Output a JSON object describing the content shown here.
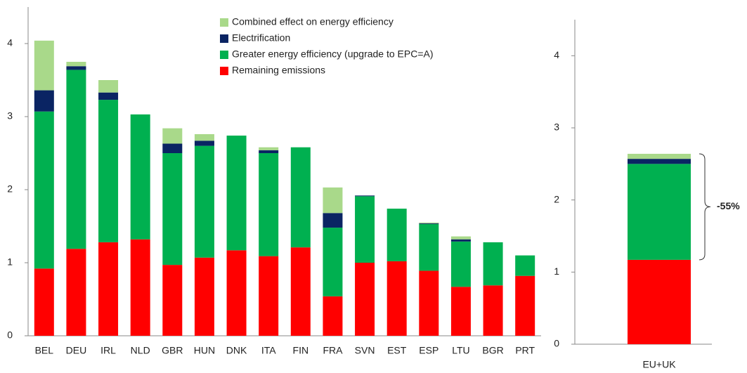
{
  "chart_data": [
    {
      "type": "stacked_bar",
      "categories": [
        "BEL",
        "DEU",
        "IRL",
        "NLD",
        "GBR",
        "HUN",
        "DNK",
        "ITA",
        "FIN",
        "FRA",
        "SVN",
        "EST",
        "ESP",
        "LTU",
        "BGR",
        "PRT"
      ],
      "series": [
        {
          "name": "Remaining emissions",
          "color": "#ff0000",
          "values": [
            0.92,
            1.19,
            1.28,
            1.32,
            0.97,
            1.07,
            1.17,
            1.09,
            1.21,
            0.54,
            1.0,
            1.02,
            0.89,
            0.67,
            0.69,
            0.82
          ]
        },
        {
          "name": "Greater energy efficiency (upgrade to EPC=A)",
          "color": "#00b050",
          "values": [
            2.15,
            2.45,
            1.95,
            1.71,
            1.53,
            1.53,
            1.57,
            1.41,
            1.37,
            0.94,
            0.91,
            0.72,
            0.64,
            0.62,
            0.59,
            0.28
          ]
        },
        {
          "name": "Electrification",
          "color": "#0a2463",
          "values": [
            0.29,
            0.05,
            0.1,
            0,
            0.13,
            0.07,
            0,
            0.04,
            0,
            0.2,
            0.01,
            0,
            0.01,
            0.03,
            0,
            0
          ]
        },
        {
          "name": "Combined effect on energy efficiency",
          "color": "#a9d98a",
          "values": [
            0.68,
            0.06,
            0.17,
            0,
            0.21,
            0.09,
            0,
            0.04,
            0,
            0.35,
            0,
            0,
            0.01,
            0.04,
            0,
            0
          ]
        }
      ],
      "ylim": [
        0,
        4.5
      ],
      "yticks": [
        0,
        1,
        2,
        3,
        4
      ],
      "legend": "top-center"
    },
    {
      "type": "stacked_bar",
      "categories": [
        "EU+UK"
      ],
      "series": [
        {
          "color": "#ff0000",
          "values": [
            1.17
          ]
        },
        {
          "color": "#00b050",
          "values": [
            1.33
          ]
        },
        {
          "color": "#0a2463",
          "values": [
            0.07
          ]
        },
        {
          "color": "#a9d98a",
          "values": [
            0.07
          ]
        }
      ],
      "ylim": [
        0,
        4.5
      ],
      "yticks": [
        0,
        1,
        2,
        3,
        4
      ],
      "annotation": "-55%"
    }
  ]
}
